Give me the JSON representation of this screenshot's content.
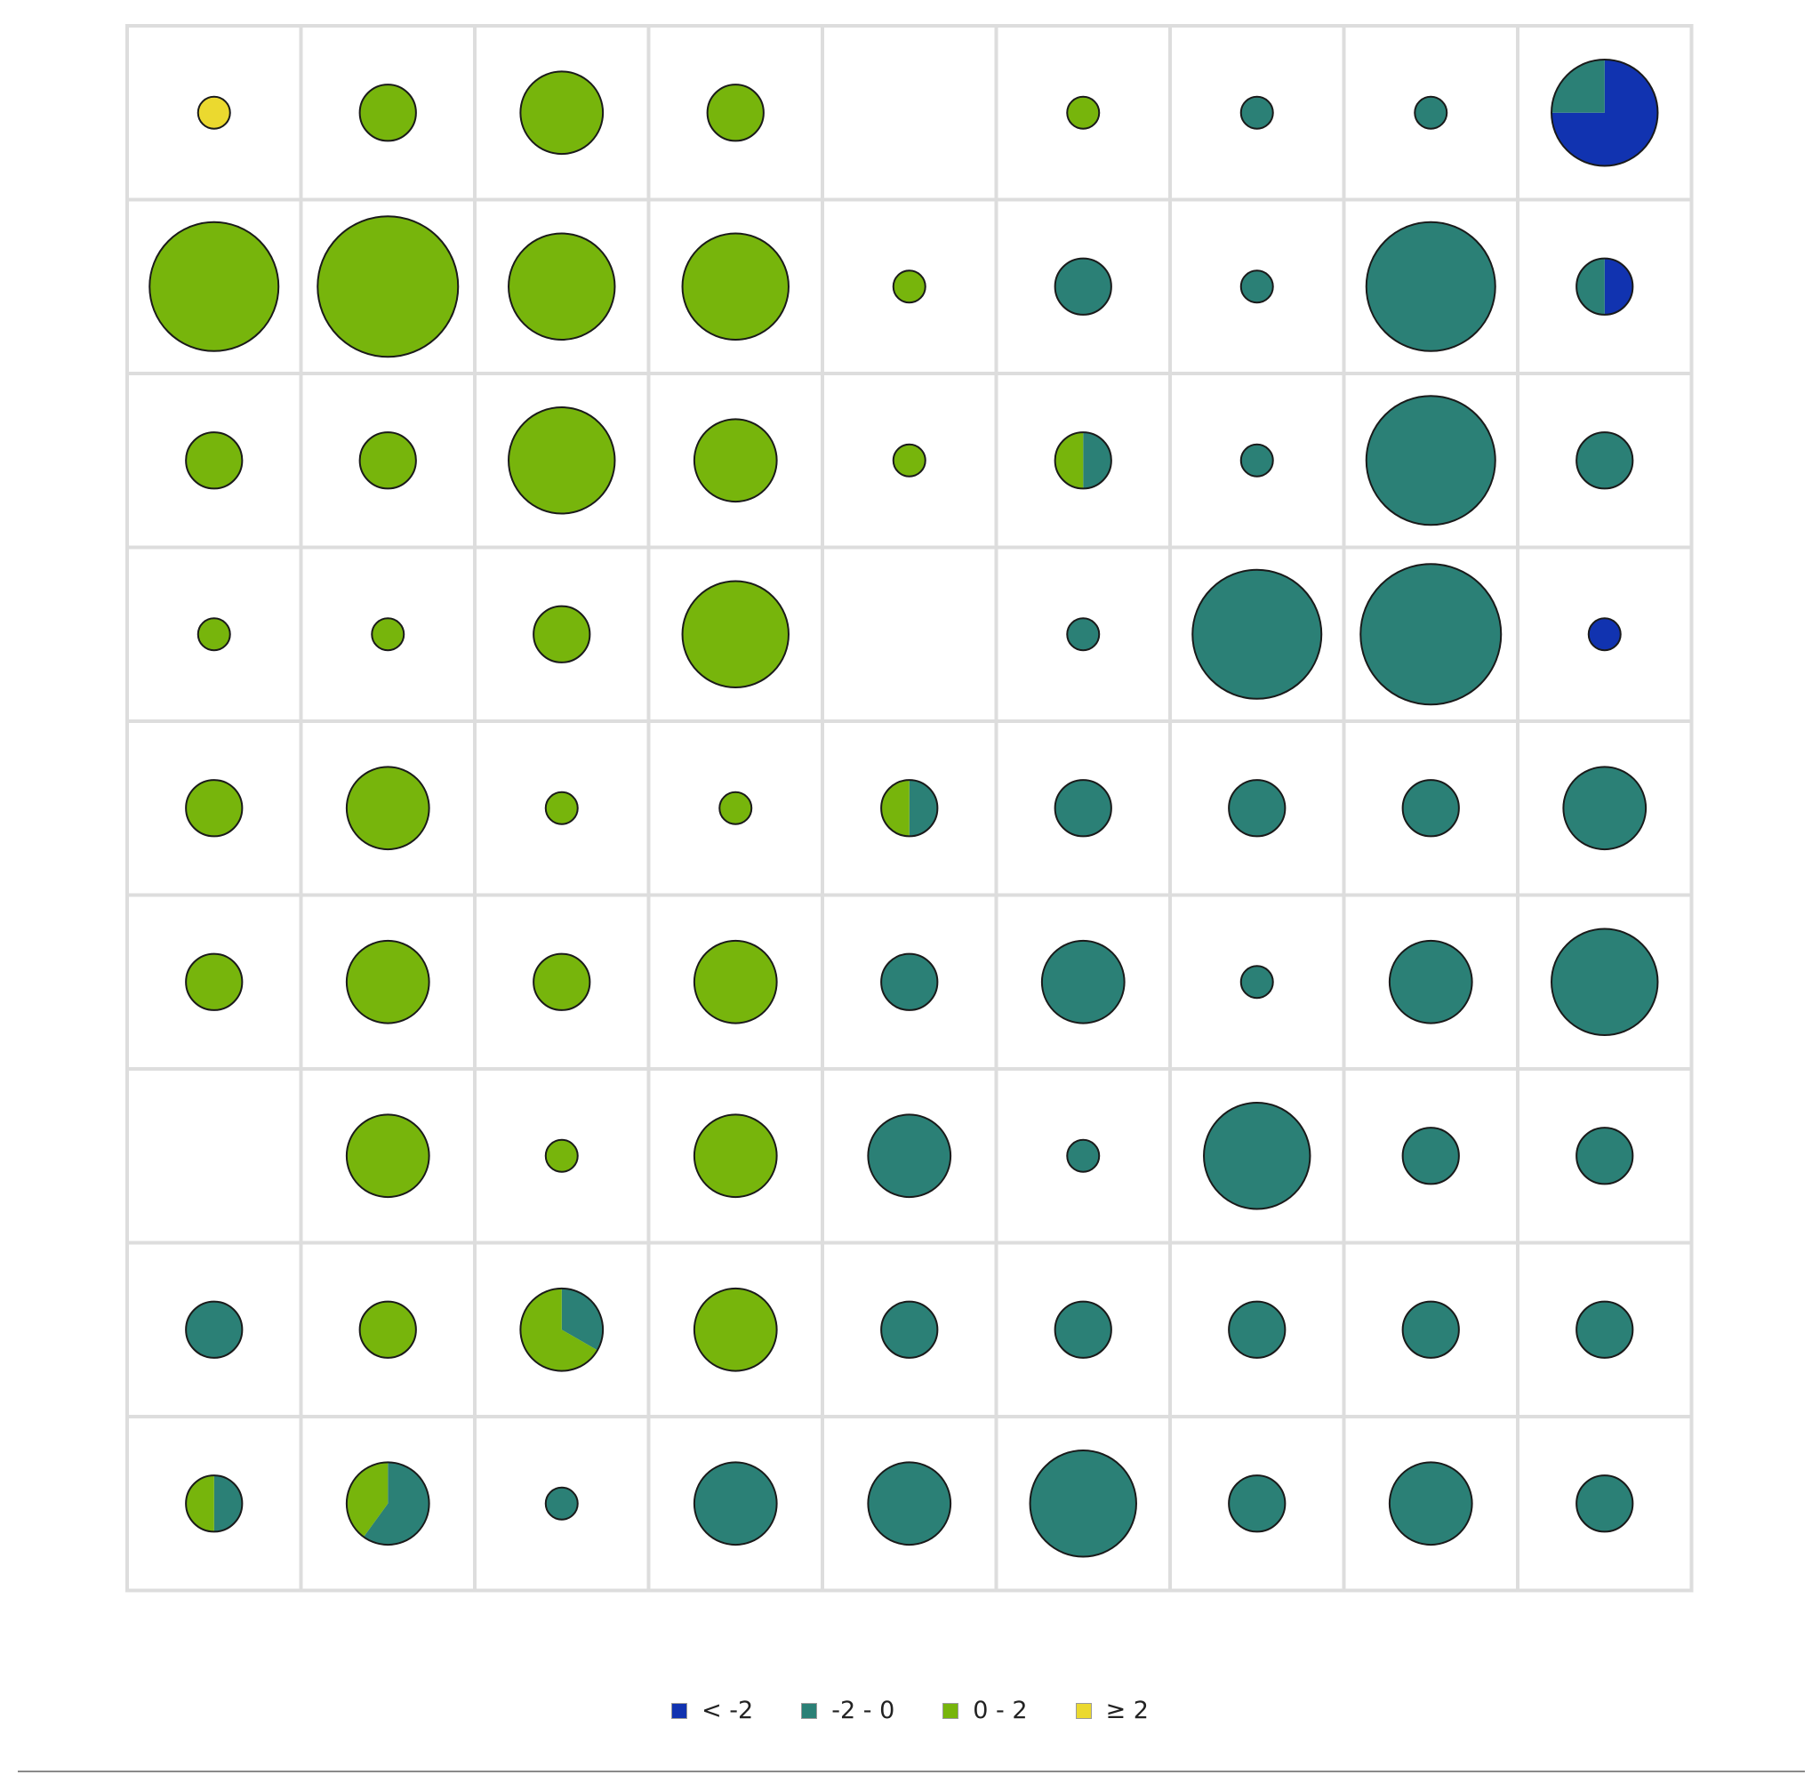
{
  "chart_data": {
    "type": "pie-grid",
    "grid": {
      "rows": 9,
      "cols": 9
    },
    "size_scale": {
      "min_value": 1,
      "max_value": 60
    },
    "colors": {
      "lt_neg2": "#1133b0",
      "neg2_0": "#2b8076",
      "0_2": "#77b50c",
      "ge_2": "#ebd92f"
    },
    "legend": {
      "placement": "bottom-center",
      "entries": [
        {
          "key": "lt_neg2",
          "label": "< -2"
        },
        {
          "key": "neg2_0",
          "label": "-2 - 0"
        },
        {
          "key": "0_2",
          "label": "0 - 2"
        },
        {
          "key": "ge_2",
          "label": "≥ 2"
        }
      ]
    },
    "cells": [
      [
        {
          "total": 2,
          "slices": {
            "ge_2": 1
          }
        },
        {
          "total": 8,
          "slices": {
            "0_2": 1
          }
        },
        {
          "total": 19,
          "slices": {
            "0_2": 1
          }
        },
        {
          "total": 8,
          "slices": {
            "0_2": 1
          }
        },
        null,
        {
          "total": 2,
          "slices": {
            "0_2": 1
          }
        },
        {
          "total": 2,
          "slices": {
            "neg2_0": 1
          }
        },
        {
          "total": 2,
          "slices": {
            "neg2_0": 1
          }
        },
        {
          "total": 33,
          "slices": {
            "lt_neg2": 0.75,
            "neg2_0": 0.25
          }
        }
      ],
      [
        {
          "total": 50,
          "slices": {
            "0_2": 1
          }
        },
        {
          "total": 60,
          "slices": {
            "0_2": 1
          }
        },
        {
          "total": 33,
          "slices": {
            "0_2": 1
          }
        },
        {
          "total": 33,
          "slices": {
            "0_2": 1
          }
        },
        {
          "total": 2,
          "slices": {
            "0_2": 1
          }
        },
        {
          "total": 8,
          "slices": {
            "neg2_0": 1
          }
        },
        {
          "total": 2,
          "slices": {
            "neg2_0": 1
          }
        },
        {
          "total": 50,
          "slices": {
            "neg2_0": 1
          }
        },
        {
          "total": 8,
          "slices": {
            "lt_neg2": 0.5,
            "neg2_0": 0.5
          }
        }
      ],
      [
        {
          "total": 8,
          "slices": {
            "0_2": 1
          }
        },
        {
          "total": 8,
          "slices": {
            "0_2": 1
          }
        },
        {
          "total": 33,
          "slices": {
            "0_2": 1
          }
        },
        {
          "total": 19,
          "slices": {
            "0_2": 1
          }
        },
        {
          "total": 2,
          "slices": {
            "0_2": 1
          }
        },
        {
          "total": 8,
          "slices": {
            "neg2_0": 0.5,
            "0_2": 0.5
          }
        },
        {
          "total": 2,
          "slices": {
            "neg2_0": 1
          }
        },
        {
          "total": 50,
          "slices": {
            "neg2_0": 1
          }
        },
        {
          "total": 8,
          "slices": {
            "neg2_0": 1
          }
        }
      ],
      [
        {
          "total": 2,
          "slices": {
            "0_2": 1
          }
        },
        {
          "total": 2,
          "slices": {
            "0_2": 1
          }
        },
        {
          "total": 8,
          "slices": {
            "0_2": 1
          }
        },
        {
          "total": 33,
          "slices": {
            "0_2": 1
          }
        },
        null,
        {
          "total": 2,
          "slices": {
            "neg2_0": 1
          }
        },
        {
          "total": 50,
          "slices": {
            "neg2_0": 1
          }
        },
        {
          "total": 60,
          "slices": {
            "neg2_0": 1
          }
        },
        {
          "total": 2,
          "slices": {
            "lt_neg2": 1
          }
        }
      ],
      [
        {
          "total": 8,
          "slices": {
            "0_2": 1
          }
        },
        {
          "total": 19,
          "slices": {
            "0_2": 1
          }
        },
        {
          "total": 2,
          "slices": {
            "0_2": 1
          }
        },
        {
          "total": 2,
          "slices": {
            "0_2": 1
          }
        },
        {
          "total": 8,
          "slices": {
            "neg2_0": 0.5,
            "0_2": 0.5
          }
        },
        {
          "total": 8,
          "slices": {
            "neg2_0": 1
          }
        },
        {
          "total": 8,
          "slices": {
            "neg2_0": 1
          }
        },
        {
          "total": 8,
          "slices": {
            "neg2_0": 1
          }
        },
        {
          "total": 19,
          "slices": {
            "neg2_0": 1
          }
        }
      ],
      [
        {
          "total": 8,
          "slices": {
            "0_2": 1
          }
        },
        {
          "total": 19,
          "slices": {
            "0_2": 1
          }
        },
        {
          "total": 8,
          "slices": {
            "0_2": 1
          }
        },
        {
          "total": 19,
          "slices": {
            "0_2": 1
          }
        },
        {
          "total": 8,
          "slices": {
            "neg2_0": 1
          }
        },
        {
          "total": 19,
          "slices": {
            "neg2_0": 1
          }
        },
        {
          "total": 2,
          "slices": {
            "neg2_0": 1
          }
        },
        {
          "total": 19,
          "slices": {
            "neg2_0": 1
          }
        },
        {
          "total": 33,
          "slices": {
            "neg2_0": 1
          }
        }
      ],
      [
        null,
        {
          "total": 19,
          "slices": {
            "0_2": 1
          }
        },
        {
          "total": 2,
          "slices": {
            "0_2": 1
          }
        },
        {
          "total": 19,
          "slices": {
            "0_2": 1
          }
        },
        {
          "total": 19,
          "slices": {
            "neg2_0": 1
          }
        },
        {
          "total": 2,
          "slices": {
            "neg2_0": 1
          }
        },
        {
          "total": 33,
          "slices": {
            "neg2_0": 1
          }
        },
        {
          "total": 8,
          "slices": {
            "neg2_0": 1
          }
        },
        {
          "total": 8,
          "slices": {
            "neg2_0": 1
          }
        }
      ],
      [
        {
          "total": 8,
          "slices": {
            "neg2_0": 1
          }
        },
        {
          "total": 8,
          "slices": {
            "0_2": 1
          }
        },
        {
          "total": 19,
          "slices": {
            "neg2_0": 0.333,
            "0_2": 0.667
          }
        },
        {
          "total": 19,
          "slices": {
            "0_2": 1
          }
        },
        {
          "total": 8,
          "slices": {
            "neg2_0": 1
          }
        },
        {
          "total": 8,
          "slices": {
            "neg2_0": 1
          }
        },
        {
          "total": 8,
          "slices": {
            "neg2_0": 1
          }
        },
        {
          "total": 8,
          "slices": {
            "neg2_0": 1
          }
        },
        {
          "total": 8,
          "slices": {
            "neg2_0": 1
          }
        }
      ],
      [
        {
          "total": 8,
          "slices": {
            "neg2_0": 0.5,
            "0_2": 0.5
          }
        },
        {
          "total": 19,
          "slices": {
            "neg2_0": 0.6,
            "0_2": 0.4
          }
        },
        {
          "total": 2,
          "slices": {
            "neg2_0": 1
          }
        },
        {
          "total": 19,
          "slices": {
            "neg2_0": 1
          }
        },
        {
          "total": 19,
          "slices": {
            "neg2_0": 1
          }
        },
        {
          "total": 33,
          "slices": {
            "neg2_0": 1
          }
        },
        {
          "total": 8,
          "slices": {
            "neg2_0": 1
          }
        },
        {
          "total": 19,
          "slices": {
            "neg2_0": 1
          }
        },
        {
          "total": 8,
          "slices": {
            "neg2_0": 1
          }
        }
      ]
    ]
  }
}
